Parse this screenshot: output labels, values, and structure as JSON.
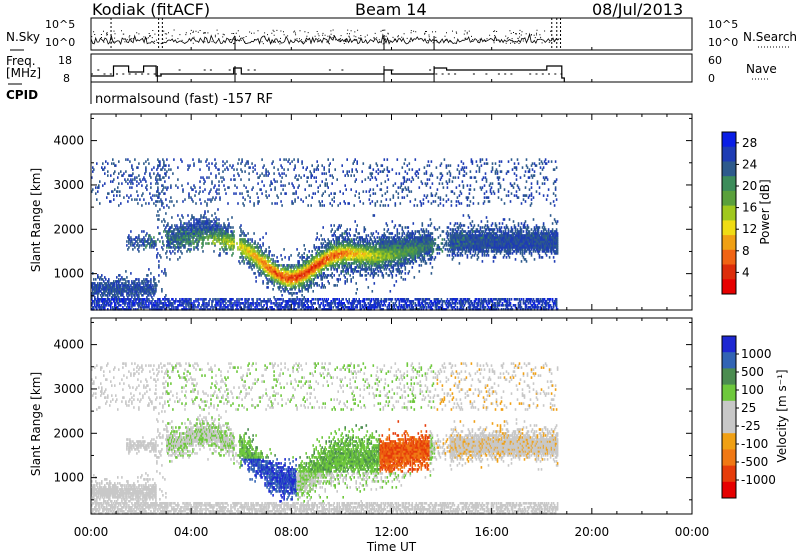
{
  "header": {
    "station": "Kodiak (fitACF)",
    "beam": "Beam 14",
    "date": "08/Jul/2013"
  },
  "strips": {
    "nsky_label": "N.Sky",
    "nsky_ticks": [
      "10^5",
      "10^0"
    ],
    "nsearch_label": "N.Search",
    "nsearch_ticks": [
      "10^5",
      "10^0"
    ],
    "freq_label_1": "Freq.",
    "freq_label_2": "[MHz]",
    "freq_ticks": [
      "18",
      "8"
    ],
    "nave_label": "Nave",
    "nave_ticks": [
      "60",
      "0"
    ],
    "cpid_label": "CPID",
    "cpid_text": "normalsound (fast) -157 RF"
  },
  "colors": {
    "power_scale": [
      "#0a1ee6",
      "#1e3cb4",
      "#2d5a8c",
      "#3c8c5a",
      "#5aa03c",
      "#a0c81e",
      "#f0dc14",
      "#f0a014",
      "#f06414",
      "#dc2d0a",
      "#e60000"
    ],
    "velocity_scale": [
      "#1e28d2",
      "#3264b4",
      "#4b8c50",
      "#6ec83c",
      "#c8c8c8",
      "#c8c8c8",
      "#f0a014",
      "#f07814",
      "#e63c0a",
      "#e60000"
    ]
  },
  "chart_data": [
    {
      "type": "heatmap",
      "title": "Power",
      "xlabel": "Time UT",
      "ylabel": "Slant Range [km]",
      "x_ticks": [
        "00:00",
        "04:00",
        "08:00",
        "12:00",
        "16:00",
        "20:00",
        "00:00"
      ],
      "xlim_hours": [
        0,
        24
      ],
      "y_ticks": [
        1000,
        2000,
        3000,
        4000
      ],
      "ylim_km": [
        180,
        4600
      ],
      "colorbar_label": "Power [dB]",
      "colorbar_ticks": [
        4,
        8,
        12,
        16,
        20,
        24,
        28
      ],
      "colorbar_range": [
        0,
        30
      ]
    },
    {
      "type": "heatmap",
      "title": "Velocity",
      "xlabel": "Time UT",
      "ylabel": "Slant Range [km]",
      "x_ticks": [
        "00:00",
        "04:00",
        "08:00",
        "12:00",
        "16:00",
        "20:00",
        "00:00"
      ],
      "xlim_hours": [
        0,
        24
      ],
      "y_ticks": [
        1000,
        2000,
        3000,
        4000
      ],
      "ylim_km": [
        180,
        4600
      ],
      "colorbar_label": "Velocity [m s⁻¹]",
      "colorbar_ticks": [
        "1000",
        "500",
        "100",
        "25",
        "-25",
        "-100",
        "-500",
        "-1000"
      ]
    }
  ],
  "x_axis_title": "Time UT"
}
